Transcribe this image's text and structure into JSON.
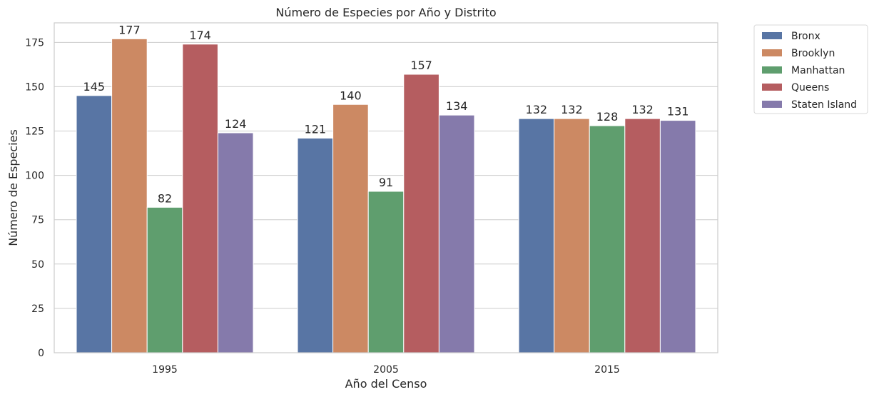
{
  "chart_data": {
    "type": "bar",
    "title": "Número de Especies por Año y Distrito",
    "xlabel": "Año del Censo",
    "ylabel": "Número de Especies",
    "categories": [
      "1995",
      "2005",
      "2015"
    ],
    "ylim": [
      0,
      186
    ],
    "yticks": [
      0,
      25,
      50,
      75,
      100,
      125,
      150,
      175
    ],
    "grid": true,
    "legend_position": "outside-top-right",
    "series": [
      {
        "name": "Bronx",
        "color": "#5875a4",
        "values": [
          145,
          121,
          132
        ]
      },
      {
        "name": "Brooklyn",
        "color": "#cc8963",
        "values": [
          177,
          140,
          132
        ]
      },
      {
        "name": "Manhattan",
        "color": "#5f9e6e",
        "values": [
          82,
          91,
          128
        ]
      },
      {
        "name": "Queens",
        "color": "#b55d60",
        "values": [
          174,
          157,
          132
        ]
      },
      {
        "name": "Staten Island",
        "color": "#857aab",
        "values": [
          124,
          134,
          131
        ]
      }
    ]
  }
}
